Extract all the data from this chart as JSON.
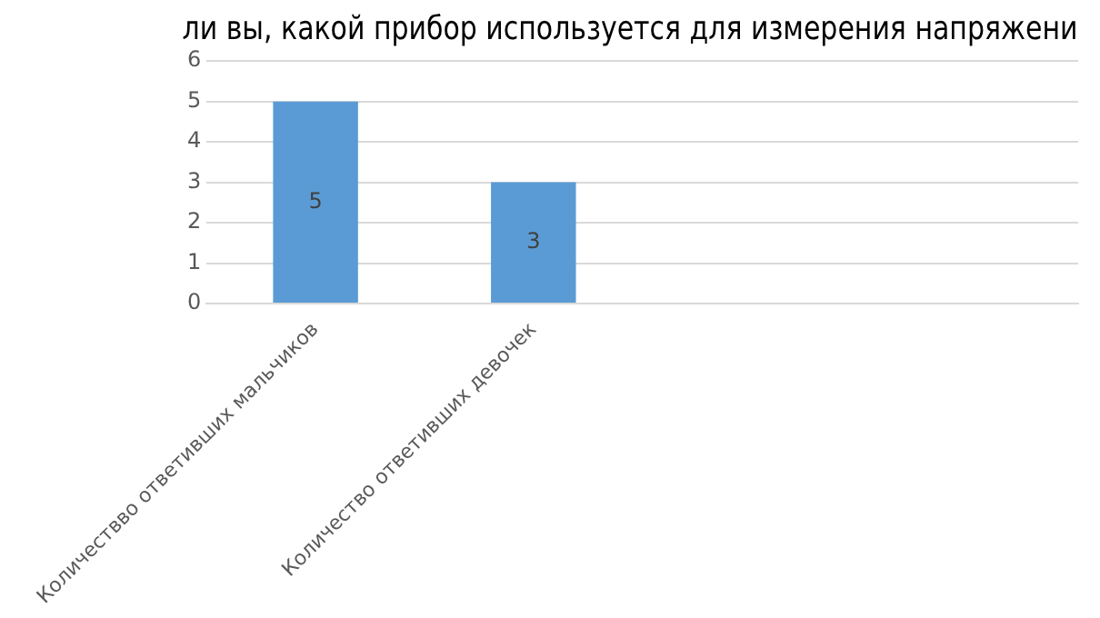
{
  "chart_data": {
    "type": "bar",
    "title": "ли вы, какой прибор используется для измерения напряжени",
    "categories": [
      "Количествво ответивших мальчиков",
      "Количество ответивших девочек",
      null,
      null
    ],
    "values": [
      5,
      3,
      null,
      null
    ],
    "color": "#5b9bd5",
    "ylim": [
      0,
      6
    ],
    "yticks": [
      0,
      1,
      2,
      3,
      4,
      5,
      6
    ],
    "grid": "y",
    "data_labels": true
  }
}
